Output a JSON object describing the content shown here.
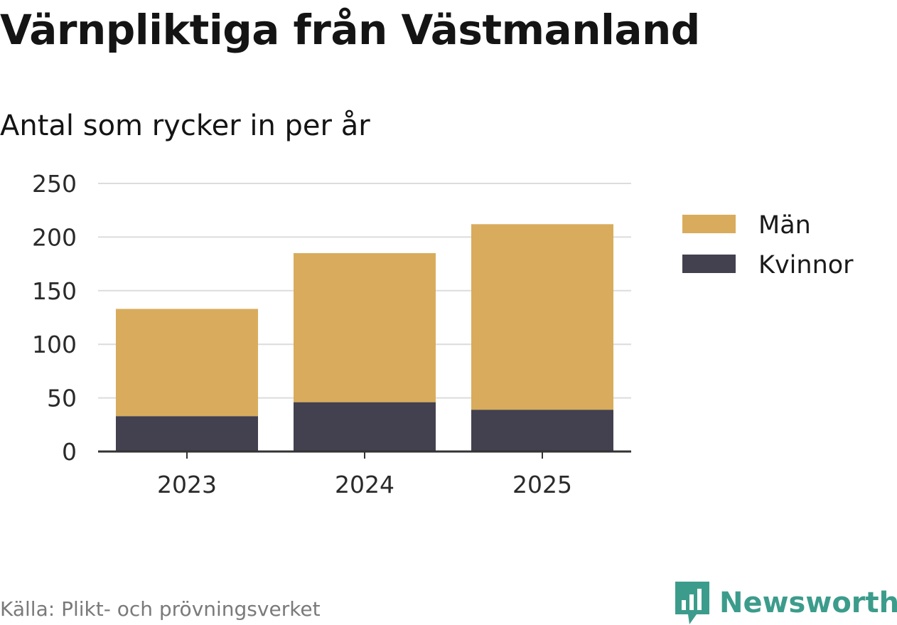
{
  "title": "Värnpliktiga från Västmanland",
  "subtitle": "Antal som rycker in per år",
  "source": "Källa: Plikt- och prövningsverket",
  "brand": {
    "name": "Newsworthy",
    "color": "#3c9c8c",
    "icon": "bar-chart-speech-bubble-icon"
  },
  "chart_data": {
    "type": "bar",
    "stacked": true,
    "categories": [
      "2023",
      "2024",
      "2025"
    ],
    "series": [
      {
        "name": "Kvinnor",
        "values": [
          33,
          46,
          39
        ],
        "color": "#43404f"
      },
      {
        "name": "Män",
        "values": [
          100,
          139,
          173
        ],
        "color": "#d8ac5c"
      }
    ],
    "ylim": [
      0,
      250
    ],
    "yticks": [
      0,
      50,
      100,
      150,
      200,
      250
    ],
    "xlabel": "",
    "ylabel": "",
    "grid": true,
    "legend": {
      "position": "right",
      "order": [
        "Män",
        "Kvinnor"
      ]
    }
  }
}
